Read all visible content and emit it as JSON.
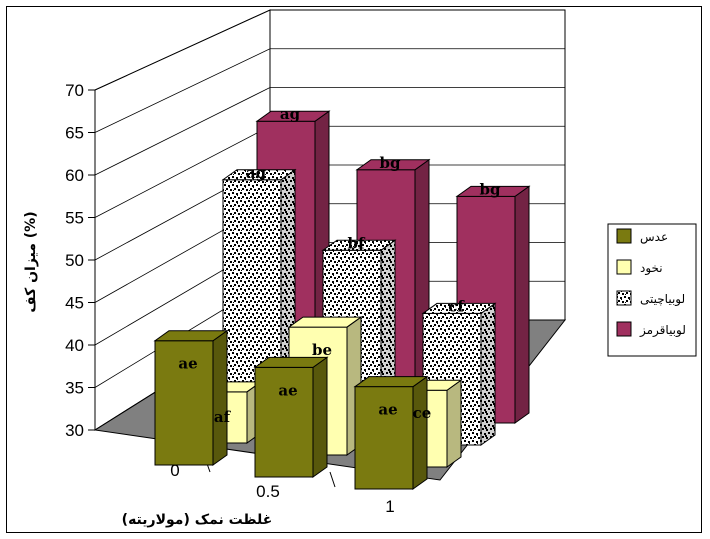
{
  "chart_data": {
    "type": "bar",
    "categories": [
      "0",
      "0.5",
      "1"
    ],
    "ylabel": "میزان کف (%)",
    "xlabel": "غلظت نمک (مولاریته)",
    "ylim": [
      30,
      70
    ],
    "yticks": [
      30,
      35,
      40,
      45,
      50,
      55,
      60,
      65,
      70
    ],
    "legend_position": "right",
    "series": [
      {
        "name": "عدس",
        "color": "#7a7a10",
        "values": [
          47,
          45,
          44
        ],
        "labels": [
          "ae",
          "ae",
          "ae"
        ]
      },
      {
        "name": "نخود",
        "color": "#ffffb0",
        "values": [
          37,
          47.5,
          40.5
        ],
        "labels": [
          "af",
          "be",
          "ce"
        ]
      },
      {
        "name": "لوبیاچیتی",
        "color": "#404040",
        "values": [
          63,
          55,
          48
        ],
        "labels": [
          "ag",
          "bf",
          "cf"
        ]
      },
      {
        "name": "لوبیاقرمز",
        "color": "#a0305f",
        "values": [
          68,
          63,
          61
        ],
        "labels": [
          "ag",
          "bg",
          "bg"
        ]
      }
    ]
  }
}
